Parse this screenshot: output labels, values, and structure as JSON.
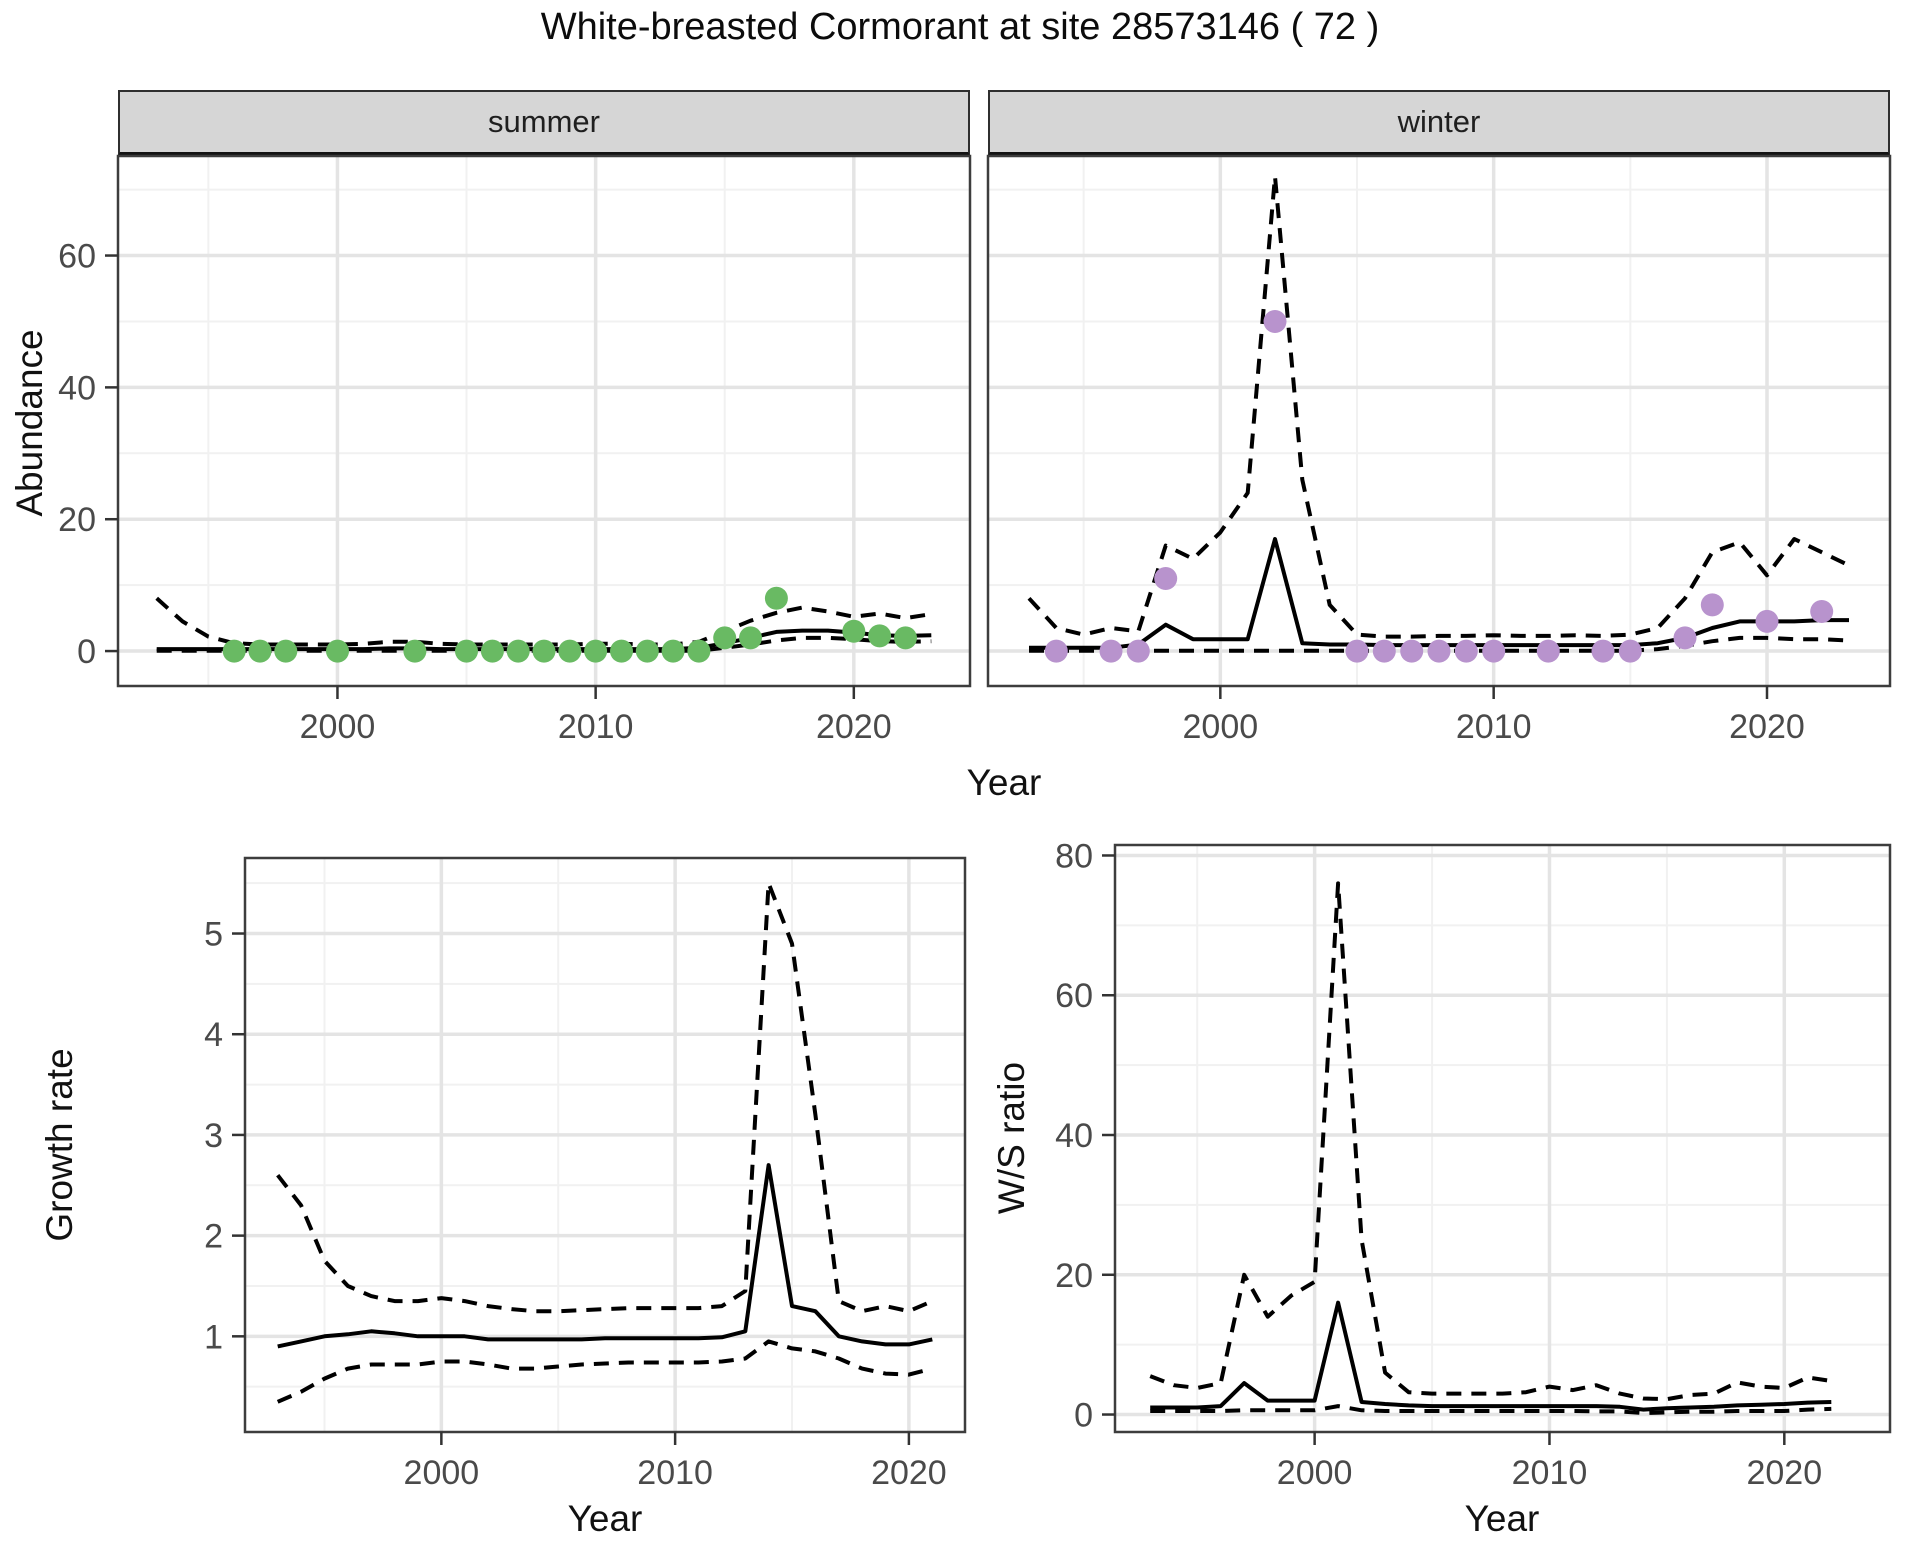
{
  "title": "White-breasted Cormorant at site 28573146 ( 72 )",
  "colors": {
    "summer_point": "#69ba63",
    "winter_point": "#b893cd",
    "line": "#000000",
    "strip_bg": "#d6d6d6",
    "grid_major": "#e4e4e4",
    "grid_minor": "#f1f1f1",
    "panel_border": "#3d3d3d",
    "tick_mark": "#333333",
    "tick_text": "#4a4a4a"
  },
  "chart_data": [
    {
      "id": "abundance-summer",
      "type": "line",
      "facet_label": "summer",
      "ylabel": "Abundance",
      "xlabel": "Year",
      "x_domain": [
        1991.5,
        2024.5
      ],
      "y_domain": [
        -5.3,
        75.1
      ],
      "x_ticks": [
        2000,
        2010,
        2020
      ],
      "x_minor": [
        1995,
        2005,
        2015
      ],
      "y_ticks": [
        0,
        20,
        40,
        60
      ],
      "y_minor": [
        10,
        30,
        50,
        70
      ],
      "years": [
        1993,
        1994,
        1995,
        1996,
        1997,
        1998,
        1999,
        2000,
        2001,
        2002,
        2003,
        2004,
        2005,
        2006,
        2007,
        2008,
        2009,
        2010,
        2011,
        2012,
        2013,
        2014,
        2015,
        2016,
        2017,
        2018,
        2019,
        2020,
        2021,
        2022,
        2023
      ],
      "series": [
        {
          "name": "median",
          "style": "solid",
          "values": [
            0.3,
            0.3,
            0.3,
            0.3,
            0.3,
            0.3,
            0.3,
            0.3,
            0.3,
            0.4,
            0.4,
            0.3,
            0.3,
            0.3,
            0.3,
            0.3,
            0.3,
            0.3,
            0.3,
            0.3,
            0.3,
            0.5,
            1.2,
            2.0,
            2.9,
            3.1,
            3.1,
            2.8,
            2.4,
            2.3,
            2.4
          ]
        },
        {
          "name": "upper-ci",
          "style": "dashed",
          "values": [
            8,
            4.5,
            2.2,
            1.2,
            1.0,
            1.0,
            1.0,
            1.0,
            1.1,
            1.4,
            1.4,
            1.1,
            1.0,
            1.0,
            1.0,
            1.0,
            1.0,
            1.1,
            1.1,
            1.0,
            1.0,
            1.4,
            3.0,
            4.6,
            5.8,
            6.6,
            6.0,
            5.2,
            5.7,
            5.0,
            5.6
          ]
        },
        {
          "name": "lower-ci",
          "style": "dashed",
          "values": [
            0.05,
            0.05,
            0.05,
            0.05,
            0.05,
            0.05,
            0.05,
            0.05,
            0.05,
            0.05,
            0.05,
            0.05,
            0.05,
            0.05,
            0.05,
            0.05,
            0.05,
            0.05,
            0.05,
            0.05,
            0.05,
            0.05,
            0.5,
            1.0,
            1.6,
            2.0,
            2.0,
            1.8,
            1.5,
            1.4,
            1.5
          ]
        }
      ],
      "points": {
        "name": "observed-summer",
        "color_key": "summer_point",
        "x": [
          1996,
          1997,
          1998,
          2000,
          2003,
          2005,
          2006,
          2007,
          2008,
          2009,
          2010,
          2011,
          2012,
          2013,
          2014,
          2015,
          2016,
          2017,
          2020,
          2021,
          2022
        ],
        "y": [
          0,
          0,
          0,
          0,
          0,
          0,
          0,
          0,
          0,
          0,
          0,
          0,
          0,
          0,
          0,
          2,
          2,
          8,
          3,
          2.3,
          2
        ]
      }
    },
    {
      "id": "abundance-winter",
      "type": "line",
      "facet_label": "winter",
      "ylabel": "Abundance",
      "xlabel": "Year",
      "x_domain": [
        1991.5,
        2024.5
      ],
      "y_domain": [
        -5.3,
        75.1
      ],
      "x_ticks": [
        2000,
        2010,
        2020
      ],
      "x_minor": [
        1995,
        2005,
        2015
      ],
      "y_ticks": [
        0,
        20,
        40,
        60
      ],
      "y_minor": [
        10,
        30,
        50,
        70
      ],
      "years": [
        1993,
        1994,
        1995,
        1996,
        1997,
        1998,
        1999,
        2000,
        2001,
        2002,
        2003,
        2004,
        2005,
        2006,
        2007,
        2008,
        2009,
        2010,
        2011,
        2012,
        2013,
        2014,
        2015,
        2016,
        2017,
        2018,
        2019,
        2020,
        2021,
        2022,
        2023
      ],
      "series": [
        {
          "name": "median",
          "style": "solid",
          "values": [
            0.5,
            0.5,
            0.5,
            0.5,
            1.0,
            4.0,
            1.8,
            1.8,
            1.8,
            17,
            1.2,
            1.0,
            1.0,
            0.9,
            0.9,
            0.9,
            0.9,
            0.9,
            0.9,
            0.9,
            0.9,
            0.9,
            0.9,
            1.2,
            2.0,
            3.5,
            4.5,
            4.5,
            4.5,
            4.7,
            4.7
          ]
        },
        {
          "name": "upper-ci",
          "style": "dashed",
          "values": [
            8,
            3.5,
            2.5,
            3.5,
            3.0,
            16,
            14,
            18,
            24,
            72,
            26,
            7,
            2.5,
            2.2,
            2.2,
            2.3,
            2.3,
            2.4,
            2.3,
            2.3,
            2.4,
            2.3,
            2.5,
            3.5,
            8,
            15,
            16.5,
            11.5,
            17,
            15,
            13
          ]
        },
        {
          "name": "lower-ci",
          "style": "dashed",
          "values": [
            0.05,
            0.05,
            0.05,
            0.05,
            0.05,
            0.05,
            0.05,
            0.05,
            0.05,
            0.05,
            0.05,
            0.05,
            0.05,
            0.05,
            0.05,
            0.05,
            0.05,
            0.05,
            0.05,
            0.05,
            0.05,
            0.05,
            0.05,
            0.3,
            0.8,
            1.5,
            2.0,
            2.0,
            1.8,
            1.8,
            1.6
          ]
        }
      ],
      "points": {
        "name": "observed-winter",
        "color_key": "winter_point",
        "x": [
          1994,
          1996,
          1997,
          1998,
          2002,
          2005,
          2006,
          2007,
          2008,
          2009,
          2010,
          2012,
          2014,
          2015,
          2017,
          2018,
          2020,
          2022
        ],
        "y": [
          0,
          0,
          0,
          11,
          50,
          0,
          0,
          0,
          0,
          0,
          0,
          0,
          0,
          0,
          2,
          7,
          4.5,
          6
        ]
      }
    },
    {
      "id": "growth-rate",
      "type": "line",
      "facet_label": "",
      "ylabel": "Growth rate",
      "xlabel": "Year",
      "x_domain": [
        1991.6,
        2022.4
      ],
      "y_domain": [
        0.05,
        5.75
      ],
      "x_ticks": [
        2000,
        2010,
        2020
      ],
      "x_minor": [
        1995,
        2005,
        2015
      ],
      "y_ticks": [
        1,
        2,
        3,
        4,
        5
      ],
      "y_minor": [
        0.5,
        1.5,
        2.5,
        3.5,
        4.5,
        5.5
      ],
      "years": [
        1993,
        1994,
        1995,
        1996,
        1997,
        1998,
        1999,
        2000,
        2001,
        2002,
        2003,
        2004,
        2005,
        2006,
        2007,
        2008,
        2009,
        2010,
        2011,
        2012,
        2013,
        2014,
        2015,
        2016,
        2017,
        2018,
        2019,
        2020,
        2021
      ],
      "series": [
        {
          "name": "median",
          "style": "solid",
          "values": [
            0.9,
            0.95,
            1.0,
            1.02,
            1.05,
            1.03,
            1.0,
            1.0,
            1.0,
            0.97,
            0.97,
            0.97,
            0.97,
            0.97,
            0.98,
            0.98,
            0.98,
            0.98,
            0.98,
            0.99,
            1.05,
            2.7,
            1.3,
            1.25,
            1.0,
            0.95,
            0.92,
            0.92,
            0.97
          ]
        },
        {
          "name": "upper-ci",
          "style": "dashed",
          "values": [
            2.6,
            2.3,
            1.75,
            1.5,
            1.4,
            1.35,
            1.35,
            1.38,
            1.35,
            1.3,
            1.27,
            1.25,
            1.25,
            1.26,
            1.27,
            1.28,
            1.28,
            1.28,
            1.28,
            1.3,
            1.45,
            5.5,
            4.9,
            3.2,
            1.35,
            1.25,
            1.3,
            1.25,
            1.35
          ]
        },
        {
          "name": "lower-ci",
          "style": "dashed",
          "values": [
            0.35,
            0.45,
            0.58,
            0.68,
            0.72,
            0.72,
            0.72,
            0.75,
            0.75,
            0.72,
            0.68,
            0.68,
            0.7,
            0.72,
            0.73,
            0.74,
            0.74,
            0.74,
            0.74,
            0.75,
            0.78,
            0.95,
            0.88,
            0.85,
            0.78,
            0.68,
            0.63,
            0.62,
            0.68
          ]
        }
      ],
      "points": null
    },
    {
      "id": "ws-ratio",
      "type": "line",
      "facet_label": "",
      "ylabel": "W/S ratio",
      "xlabel": "Year",
      "x_domain": [
        1991.5,
        2024.5
      ],
      "y_domain": [
        -2.5,
        81.5
      ],
      "x_ticks": [
        2000,
        2010,
        2020
      ],
      "x_minor": [
        1995,
        2005,
        2015
      ],
      "y_ticks": [
        0,
        20,
        40,
        60,
        80
      ],
      "y_minor": [
        10,
        30,
        50,
        70
      ],
      "years": [
        1993,
        1994,
        1995,
        1996,
        1997,
        1998,
        1999,
        2000,
        2001,
        2002,
        2003,
        2004,
        2005,
        2006,
        2007,
        2008,
        2009,
        2010,
        2011,
        2012,
        2013,
        2014,
        2015,
        2016,
        2017,
        2018,
        2019,
        2020,
        2021,
        2022
      ],
      "series": [
        {
          "name": "median",
          "style": "solid",
          "values": [
            1.0,
            1.0,
            1.0,
            1.2,
            4.5,
            2.0,
            2.0,
            2.0,
            16,
            1.8,
            1.5,
            1.3,
            1.2,
            1.2,
            1.2,
            1.2,
            1.2,
            1.2,
            1.2,
            1.2,
            1.1,
            0.7,
            0.9,
            1.0,
            1.1,
            1.3,
            1.4,
            1.5,
            1.7,
            1.8
          ]
        },
        {
          "name": "upper-ci",
          "style": "dashed",
          "values": [
            5.5,
            4.2,
            3.8,
            4.5,
            20,
            14,
            17,
            19,
            76,
            25,
            6,
            3.2,
            3.0,
            3.0,
            3.0,
            3.0,
            3.2,
            4.0,
            3.5,
            4.2,
            3.0,
            2.3,
            2.2,
            2.8,
            3.0,
            4.6,
            4.0,
            3.8,
            5.3,
            4.8
          ]
        },
        {
          "name": "lower-ci",
          "style": "dashed",
          "values": [
            0.5,
            0.5,
            0.5,
            0.5,
            0.6,
            0.6,
            0.6,
            0.6,
            1.2,
            0.6,
            0.5,
            0.5,
            0.5,
            0.5,
            0.5,
            0.5,
            0.5,
            0.5,
            0.5,
            0.45,
            0.45,
            0.2,
            0.3,
            0.4,
            0.4,
            0.5,
            0.5,
            0.5,
            0.7,
            0.8
          ]
        }
      ],
      "points": null
    }
  ]
}
